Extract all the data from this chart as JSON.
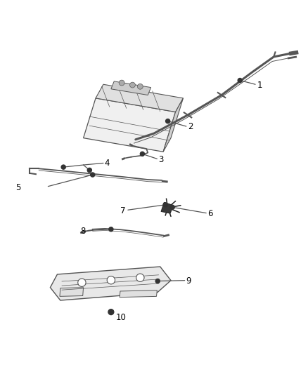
{
  "bg_color": "#ffffff",
  "line_color": "#555555",
  "dark_color": "#222222",
  "fill_light": "#f0f0f0",
  "fill_mid": "#e0e0e0",
  "fill_dark": "#d0d0d0",
  "fill_plate": "#e8e8e8",
  "text_color": "#000000",
  "dot_color": "#333333"
}
